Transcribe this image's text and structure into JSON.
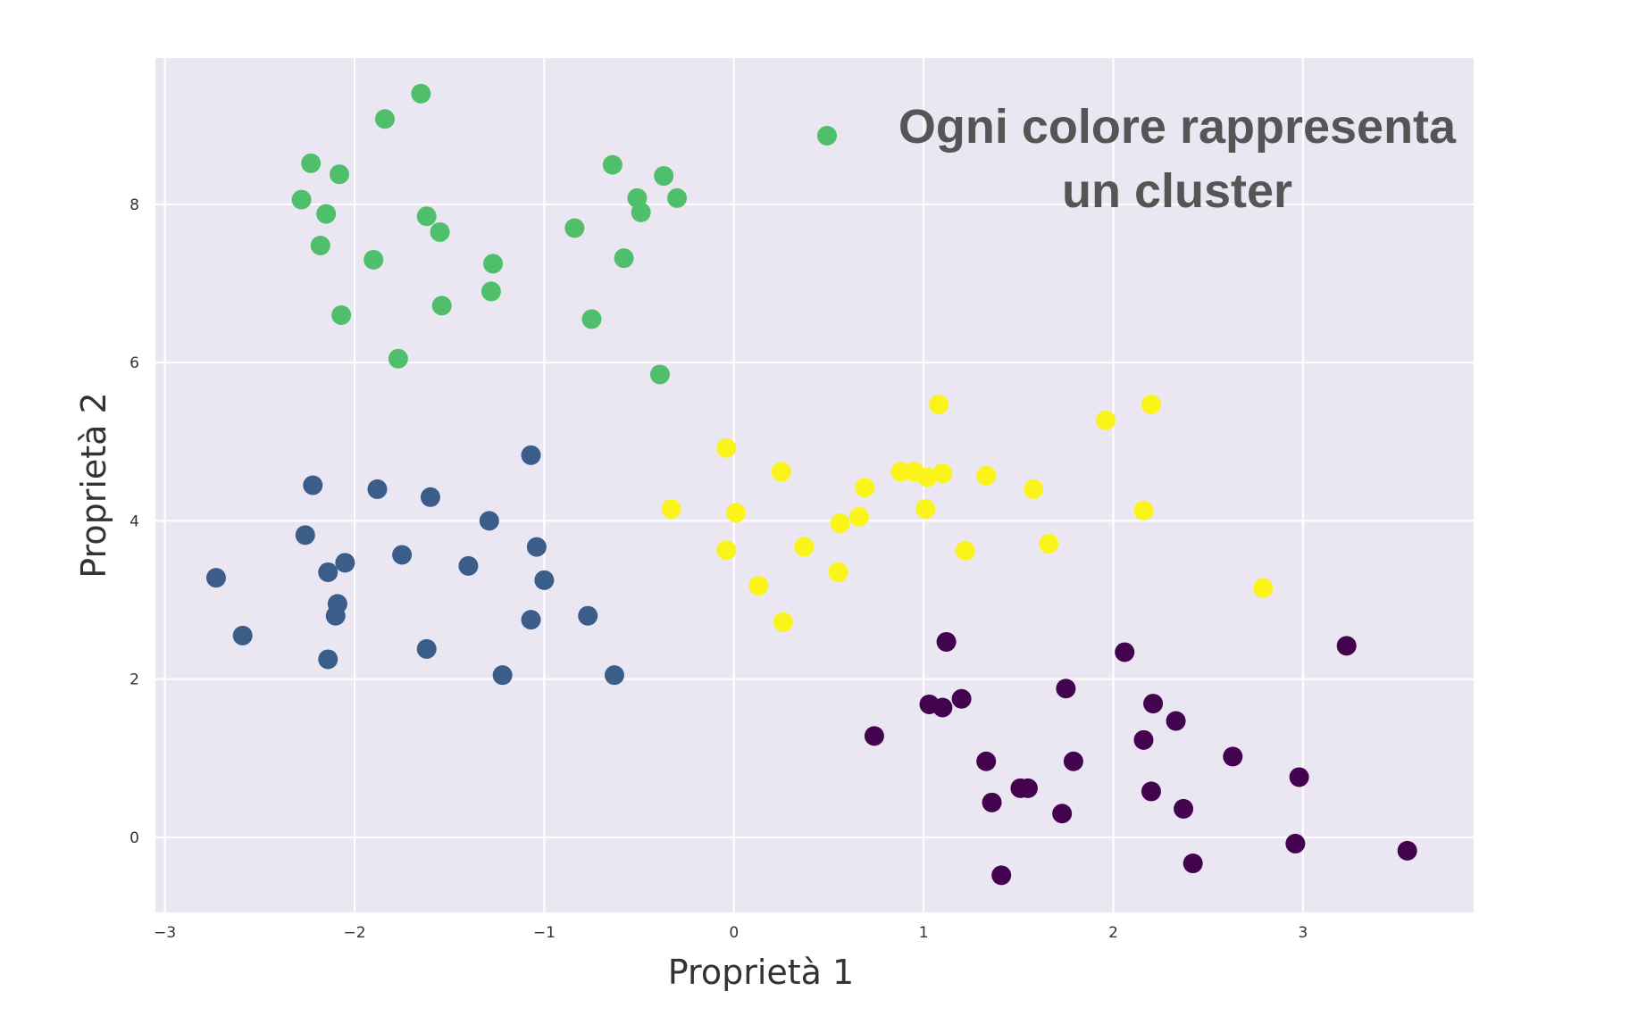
{
  "chart_data": {
    "type": "scatter",
    "xlabel": "Proprietà 1",
    "ylabel": "Proprietà 2",
    "xlim": [
      -3.05,
      3.9
    ],
    "ylim": [
      -0.95,
      9.85
    ],
    "xticks": [
      -3,
      -2,
      -1,
      0,
      1,
      2,
      3
    ],
    "yticks": [
      0,
      2,
      4,
      6,
      8
    ],
    "grid": true,
    "legend_position": "top-right",
    "annotation": {
      "lines": [
        "Ogni colore rappresenta",
        "un cluster"
      ],
      "marker_color": "#4fbf6b"
    },
    "series": [
      {
        "color": "#4fbf6b",
        "points": [
          [
            -1.65,
            9.4
          ],
          [
            -1.84,
            9.08
          ],
          [
            -2.23,
            8.52
          ],
          [
            -2.08,
            8.38
          ],
          [
            -2.28,
            8.06
          ],
          [
            -2.15,
            7.88
          ],
          [
            -1.62,
            7.85
          ],
          [
            -1.55,
            7.65
          ],
          [
            -2.18,
            7.48
          ],
          [
            -1.9,
            7.3
          ],
          [
            -1.27,
            7.25
          ],
          [
            -2.07,
            6.6
          ],
          [
            -1.54,
            6.72
          ],
          [
            -1.28,
            6.9
          ],
          [
            -1.77,
            6.05
          ],
          [
            -0.64,
            8.5
          ],
          [
            -0.37,
            8.36
          ],
          [
            -0.51,
            8.08
          ],
          [
            -0.3,
            8.08
          ],
          [
            -0.49,
            7.9
          ],
          [
            -0.84,
            7.7
          ],
          [
            -0.58,
            7.32
          ],
          [
            -0.75,
            6.55
          ],
          [
            -0.39,
            5.85
          ]
        ]
      },
      {
        "color": "#3a5d8a",
        "points": [
          [
            -2.73,
            3.28
          ],
          [
            -2.59,
            2.55
          ],
          [
            -2.22,
            4.45
          ],
          [
            -2.26,
            3.82
          ],
          [
            -2.14,
            3.35
          ],
          [
            -2.05,
            3.47
          ],
          [
            -2.09,
            2.95
          ],
          [
            -2.1,
            2.8
          ],
          [
            -2.14,
            2.25
          ],
          [
            -1.88,
            4.4
          ],
          [
            -1.6,
            4.3
          ],
          [
            -1.75,
            3.57
          ],
          [
            -1.62,
            2.38
          ],
          [
            -1.4,
            3.43
          ],
          [
            -1.29,
            4.0
          ],
          [
            -1.22,
            2.05
          ],
          [
            -1.07,
            4.83
          ],
          [
            -1.04,
            3.67
          ],
          [
            -1.0,
            3.25
          ],
          [
            -1.07,
            2.75
          ],
          [
            -0.77,
            2.8
          ],
          [
            -0.63,
            2.05
          ]
        ]
      },
      {
        "color": "#fbf41a",
        "points": [
          [
            -0.33,
            4.15
          ],
          [
            -0.04,
            4.92
          ],
          [
            0.01,
            4.1
          ],
          [
            -0.04,
            3.63
          ],
          [
            0.13,
            3.18
          ],
          [
            0.25,
            4.62
          ],
          [
            0.37,
            3.67
          ],
          [
            0.26,
            2.72
          ],
          [
            0.56,
            3.97
          ],
          [
            0.55,
            3.35
          ],
          [
            0.66,
            4.05
          ],
          [
            0.69,
            4.42
          ],
          [
            0.88,
            4.62
          ],
          [
            0.95,
            4.62
          ],
          [
            1.02,
            4.55
          ],
          [
            1.1,
            4.6
          ],
          [
            1.01,
            4.15
          ],
          [
            1.08,
            5.47
          ],
          [
            1.22,
            3.62
          ],
          [
            1.33,
            4.57
          ],
          [
            1.58,
            4.4
          ],
          [
            1.66,
            3.71
          ],
          [
            1.96,
            5.27
          ],
          [
            2.2,
            5.47
          ],
          [
            2.16,
            4.13
          ],
          [
            2.79,
            3.15
          ]
        ]
      },
      {
        "color": "#44034f",
        "points": [
          [
            0.74,
            1.28
          ],
          [
            1.12,
            2.47
          ],
          [
            1.03,
            1.68
          ],
          [
            1.1,
            1.64
          ],
          [
            1.2,
            1.75
          ],
          [
            1.33,
            0.96
          ],
          [
            1.36,
            0.44
          ],
          [
            1.41,
            -0.48
          ],
          [
            1.51,
            0.62
          ],
          [
            1.55,
            0.62
          ],
          [
            1.73,
            0.3
          ],
          [
            1.75,
            1.88
          ],
          [
            1.79,
            0.96
          ],
          [
            2.06,
            2.34
          ],
          [
            2.16,
            1.23
          ],
          [
            2.21,
            1.69
          ],
          [
            2.2,
            0.58
          ],
          [
            2.33,
            1.47
          ],
          [
            2.37,
            0.36
          ],
          [
            2.42,
            -0.33
          ],
          [
            2.63,
            1.02
          ],
          [
            2.96,
            -0.08
          ],
          [
            2.98,
            0.76
          ],
          [
            3.23,
            2.42
          ],
          [
            3.55,
            -0.17
          ]
        ]
      }
    ]
  }
}
